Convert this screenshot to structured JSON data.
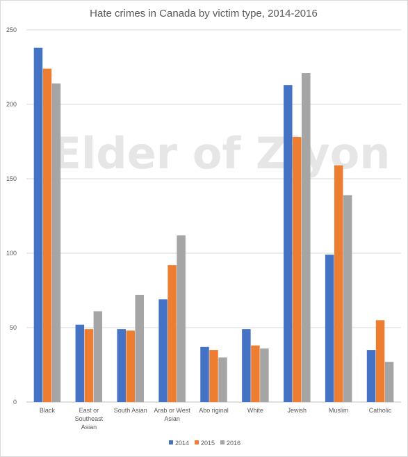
{
  "chart_data": {
    "type": "bar",
    "title": "Hate crimes in Canada by victim type, 2014-2016",
    "watermark": "Elder of Ziyon",
    "categories": [
      [
        "Black"
      ],
      [
        "East or",
        "Southeast",
        "Asian"
      ],
      [
        "South Asian"
      ],
      [
        "Arab or West",
        "Asian"
      ],
      [
        "Abo riginal"
      ],
      [
        "White"
      ],
      [
        "Jewish"
      ],
      [
        "Muslim"
      ],
      [
        "Catholic"
      ]
    ],
    "series": [
      {
        "name": "2014",
        "color": "#4472c4",
        "values": [
          238,
          52,
          49,
          69,
          37,
          49,
          213,
          99,
          35
        ]
      },
      {
        "name": "2015",
        "color": "#ed7d31",
        "values": [
          224,
          49,
          48,
          92,
          35,
          38,
          178,
          159,
          55
        ]
      },
      {
        "name": "2016",
        "color": "#a5a5a5",
        "values": [
          214,
          61,
          72,
          112,
          30,
          36,
          221,
          139,
          27
        ]
      }
    ],
    "ylim": [
      0,
      250
    ],
    "yticks": [
      "0",
      "50",
      "100",
      "150",
      "200",
      "250"
    ],
    "xlabel": "",
    "ylabel": "",
    "grid": true,
    "legend_position": "bottom"
  }
}
